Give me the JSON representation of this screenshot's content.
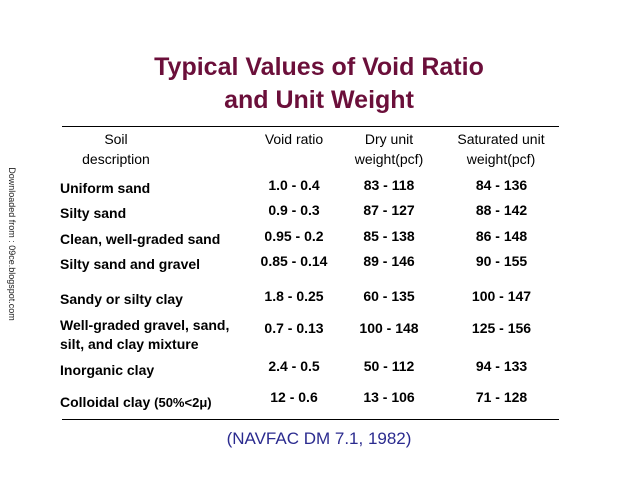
{
  "title": {
    "line1": "Typical Values of Void Ratio",
    "line2": "and Unit Weight"
  },
  "side_note": "Downloaded from : 09ce.blogspot.com",
  "table": {
    "headers": {
      "soil_line1": "Soil",
      "soil_line2": "description",
      "void_ratio": "Void ratio",
      "dry_line1": "Dry unit",
      "dry_line2": "weight(pcf)",
      "sat_line1": "Saturated unit",
      "sat_line2": "weight(pcf)"
    },
    "rows": [
      {
        "desc": "Uniform sand",
        "void": "1.0 - 0.4",
        "dry": "83 - 118",
        "sat": "84 - 136"
      },
      {
        "desc": "Silty sand",
        "void": "0.9 - 0.3",
        "dry": "87 - 127",
        "sat": "88 - 142"
      },
      {
        "desc": "Clean, well-graded sand",
        "void": "0.95 - 0.2",
        "dry": "85 - 138",
        "sat": "86 - 148"
      },
      {
        "desc": "Silty sand and gravel",
        "void": "0.85 - 0.14",
        "dry": "89 - 146",
        "sat": "90 - 155"
      },
      {
        "desc": "Sandy or silty clay",
        "void": "1.8 - 0.25",
        "dry": "60 - 135",
        "sat": "100 - 147"
      },
      {
        "desc_line1": "Well-graded gravel, sand,",
        "desc_line2": "silt, and clay mixture",
        "void": "0.7 - 0.13",
        "dry": "100 - 148",
        "sat": "125 - 156"
      },
      {
        "desc": "Inorganic clay",
        "void": "2.4 - 0.5",
        "dry": "50 - 112",
        "sat": "94 - 133"
      },
      {
        "desc_prefix": "Colloidal clay ",
        "desc_note": "(50%<2",
        "desc_mu": "μ",
        "desc_close": ")",
        "void": "12 - 0.6",
        "dry": "13 - 106",
        "sat": "71 - 128"
      }
    ]
  },
  "citation": "(NAVFAC DM 7.1, 1982)",
  "colors": {
    "title": "#6b0f3a",
    "citation": "#2b2b8f"
  }
}
